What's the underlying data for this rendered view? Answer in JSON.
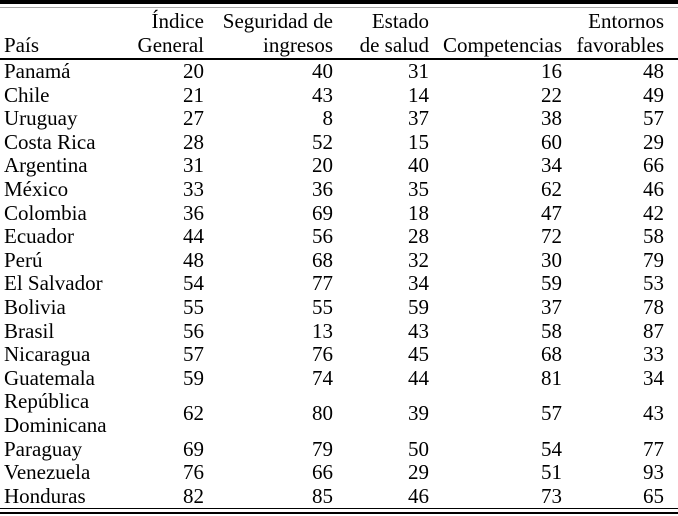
{
  "table": {
    "colors": {
      "text": "#000000",
      "background": "#ffffff",
      "rule": "#000000",
      "faint_rule": "#a8a8a8"
    },
    "header": {
      "pais": "País",
      "columns": [
        {
          "label": "Índice General",
          "lines": [
            "Índice",
            "General"
          ]
        },
        {
          "label": "Seguridad de ingresos",
          "lines": [
            "Seguridad de",
            "ingresos"
          ]
        },
        {
          "label": "Estado de salud",
          "lines": [
            "Estado",
            "de salud"
          ]
        },
        {
          "label": "Competencias",
          "lines": [
            "Competencias"
          ]
        },
        {
          "label": "Entornos favorables",
          "lines": [
            "Entornos",
            "favorables"
          ]
        }
      ]
    },
    "rows": [
      {
        "pais": "Panamá",
        "values": [
          "20",
          "40",
          "31",
          "16",
          "48"
        ]
      },
      {
        "pais": "Chile",
        "values": [
          "21",
          "43",
          "14",
          "22",
          "49"
        ]
      },
      {
        "pais": "Uruguay",
        "values": [
          "27",
          "8",
          "37",
          "38",
          "57"
        ]
      },
      {
        "pais": "Costa Rica",
        "values": [
          "28",
          "52",
          "15",
          "60",
          "29"
        ]
      },
      {
        "pais": "Argentina",
        "values": [
          "31",
          "20",
          "40",
          "34",
          "66"
        ]
      },
      {
        "pais": "México",
        "values": [
          "33",
          "36",
          "35",
          "62",
          "46"
        ]
      },
      {
        "pais": "Colombia",
        "values": [
          "36",
          "69",
          "18",
          "47",
          "42"
        ]
      },
      {
        "pais": "Ecuador",
        "values": [
          "44",
          "56",
          "28",
          "72",
          "58"
        ]
      },
      {
        "pais": "Perú",
        "values": [
          "48",
          "68",
          "32",
          "30",
          "79"
        ]
      },
      {
        "pais": "El Salvador",
        "values": [
          "54",
          "77",
          "34",
          "59",
          "53"
        ]
      },
      {
        "pais": "Bolivia",
        "values": [
          "55",
          "55",
          "59",
          "37",
          "78"
        ]
      },
      {
        "pais": "Brasil",
        "values": [
          "56",
          "13",
          "43",
          "58",
          "87"
        ]
      },
      {
        "pais": "Nicaragua",
        "values": [
          "57",
          "76",
          "45",
          "68",
          "33"
        ]
      },
      {
        "pais": "Guatemala",
        "values": [
          "59",
          "74",
          "44",
          "81",
          "34"
        ]
      },
      {
        "pais": "República Dominicana",
        "pais_lines": [
          "República",
          "Dominicana"
        ],
        "values": [
          "62",
          "80",
          "39",
          "57",
          "43"
        ]
      },
      {
        "pais": "Paraguay",
        "values": [
          "69",
          "79",
          "50",
          "54",
          "77"
        ]
      },
      {
        "pais": "Venezuela",
        "values": [
          "76",
          "66",
          "29",
          "51",
          "93"
        ]
      },
      {
        "pais": "Honduras",
        "values": [
          "82",
          "85",
          "46",
          "73",
          "65"
        ]
      }
    ]
  }
}
